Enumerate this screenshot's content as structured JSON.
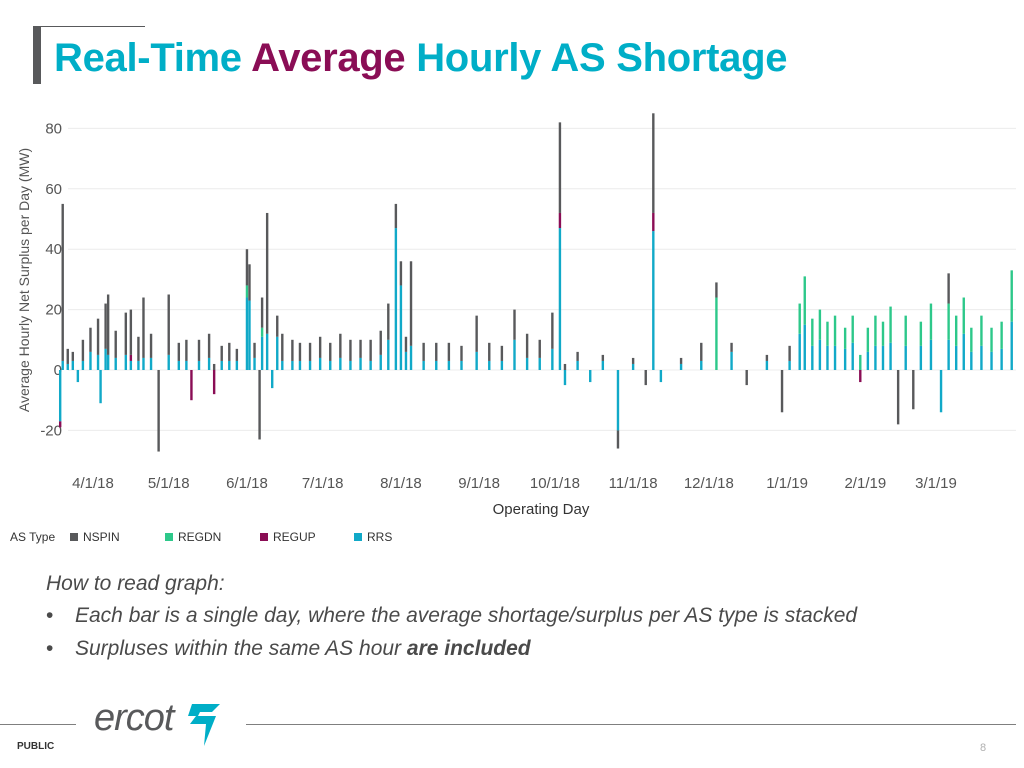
{
  "slide": {
    "title_part1": "Real-Time",
    "title_accent": "Average",
    "title_part2": "Hourly AS Shortage",
    "how_to_read": "How to read graph:",
    "bullet1": "Each bar is a single day, where the average shortage/surplus per AS type is stacked",
    "bullet2_text": "Surpluses within the same AS hour",
    "bullet2_bold": "are included",
    "bullet_char": "•",
    "logo_text": "ercot",
    "classification": "PUBLIC",
    "page_number": "8"
  },
  "colors": {
    "title": "#00aec7",
    "title_accent": "#8a0d55",
    "NSPIN": "#58595b",
    "REGDN": "#2dc88a",
    "REGUP": "#8a0d55",
    "RRS": "#11a9c8",
    "logo_mark": "#00aec7"
  },
  "chart_data": {
    "type": "bar",
    "stacked": true,
    "ylabel": "Average Hourly Net Surplus per Day (MW)",
    "xlabel": "Operating Day",
    "ylim": [
      -30,
      85
    ],
    "yticks": [
      -20,
      0,
      20,
      40,
      60,
      80
    ],
    "grid": "horizontal",
    "x_tick_labels": [
      "4/1/18",
      "5/1/18",
      "6/1/18",
      "7/1/18",
      "8/1/18",
      "9/1/18",
      "10/1/18",
      "11/1/18",
      "12/1/18",
      "1/1/19",
      "2/1/19",
      "3/1/19"
    ],
    "x_tick_dates": [
      "2018-04-01",
      "2018-05-01",
      "2018-06-01",
      "2018-07-01",
      "2018-08-01",
      "2018-09-01",
      "2018-10-01",
      "2018-11-01",
      "2018-12-01",
      "2019-01-01",
      "2019-02-01",
      "2019-03-01"
    ],
    "legend_title": "AS Type",
    "legend_position": "bottom-left",
    "series_names": [
      "NSPIN",
      "REGDN",
      "REGUP",
      "RRS"
    ],
    "points": [
      {
        "date": "2018-03-19",
        "RRS": -17,
        "REGUP": -2
      },
      {
        "date": "2018-03-20",
        "NSPIN": 52,
        "RRS": 3
      },
      {
        "date": "2018-03-22",
        "NSPIN": 5,
        "RRS": 2
      },
      {
        "date": "2018-03-24",
        "NSPIN": 3,
        "RRS": 3
      },
      {
        "date": "2018-03-26",
        "RRS": -4
      },
      {
        "date": "2018-03-28",
        "NSPIN": 7,
        "RRS": 3
      },
      {
        "date": "2018-03-31",
        "NSPIN": 8,
        "RRS": 6
      },
      {
        "date": "2018-04-03",
        "NSPIN": 12,
        "RRS": 5
      },
      {
        "date": "2018-04-04",
        "RRS": -11
      },
      {
        "date": "2018-04-06",
        "NSPIN": 15,
        "RRS": 7
      },
      {
        "date": "2018-04-07",
        "NSPIN": 20,
        "RRS": 5
      },
      {
        "date": "2018-04-10",
        "NSPIN": 9,
        "RRS": 4
      },
      {
        "date": "2018-04-14",
        "NSPIN": 14,
        "RRS": 5
      },
      {
        "date": "2018-04-16",
        "NSPIN": 15,
        "REGUP": 2,
        "RRS": 3
      },
      {
        "date": "2018-04-19",
        "NSPIN": 8,
        "RRS": 3
      },
      {
        "date": "2018-04-21",
        "NSPIN": 20,
        "RRS": 4
      },
      {
        "date": "2018-04-24",
        "NSPIN": 8,
        "RRS": 4
      },
      {
        "date": "2018-04-27",
        "NSPIN": -27
      },
      {
        "date": "2018-05-01",
        "NSPIN": 20,
        "RRS": 5
      },
      {
        "date": "2018-05-05",
        "NSPIN": 6,
        "RRS": 3
      },
      {
        "date": "2018-05-08",
        "NSPIN": 7,
        "RRS": 3
      },
      {
        "date": "2018-05-10",
        "REGUP": -10
      },
      {
        "date": "2018-05-13",
        "NSPIN": 7,
        "RRS": 3
      },
      {
        "date": "2018-05-17",
        "NSPIN": 8,
        "RRS": 4
      },
      {
        "date": "2018-05-19",
        "NSPIN": 2,
        "REGUP": -8
      },
      {
        "date": "2018-05-22",
        "NSPIN": 5,
        "RRS": 3
      },
      {
        "date": "2018-05-25",
        "NSPIN": 6,
        "RRS": 3
      },
      {
        "date": "2018-05-28",
        "NSPIN": 4,
        "RRS": 3
      },
      {
        "date": "2018-06-01",
        "NSPIN": 12,
        "REGDN": 4,
        "RRS": 24
      },
      {
        "date": "2018-06-02",
        "NSPIN": 12,
        "RRS": 23
      },
      {
        "date": "2018-06-04",
        "NSPIN": 5,
        "RRS": 4
      },
      {
        "date": "2018-06-06",
        "NSPIN": -23
      },
      {
        "date": "2018-06-07",
        "NSPIN": 10,
        "REGDN": 3,
        "RRS": 11
      },
      {
        "date": "2018-06-09",
        "NSPIN": 40,
        "RRS": 12
      },
      {
        "date": "2018-06-11",
        "RRS": -6
      },
      {
        "date": "2018-06-13",
        "NSPIN": 7,
        "RRS": 11
      },
      {
        "date": "2018-06-15",
        "NSPIN": 9,
        "RRS": 3
      },
      {
        "date": "2018-06-19",
        "NSPIN": 7,
        "RRS": 3
      },
      {
        "date": "2018-06-22",
        "NSPIN": 6,
        "RRS": 3
      },
      {
        "date": "2018-06-26",
        "NSPIN": 6,
        "RRS": 3
      },
      {
        "date": "2018-06-30",
        "NSPIN": 7,
        "RRS": 4
      },
      {
        "date": "2018-07-04",
        "NSPIN": 6,
        "RRS": 3
      },
      {
        "date": "2018-07-08",
        "NSPIN": 8,
        "RRS": 4
      },
      {
        "date": "2018-07-12",
        "NSPIN": 7,
        "RRS": 3
      },
      {
        "date": "2018-07-16",
        "NSPIN": 6,
        "RRS": 4
      },
      {
        "date": "2018-07-20",
        "NSPIN": 7,
        "RRS": 3
      },
      {
        "date": "2018-07-24",
        "NSPIN": 8,
        "RRS": 5
      },
      {
        "date": "2018-07-27",
        "NSPIN": 12,
        "RRS": 10
      },
      {
        "date": "2018-07-30",
        "NSPIN": 8,
        "RRS": 47
      },
      {
        "date": "2018-08-01",
        "NSPIN": 8,
        "RRS": 28
      },
      {
        "date": "2018-08-03",
        "NSPIN": 5,
        "RRS": 6
      },
      {
        "date": "2018-08-05",
        "NSPIN": 28,
        "RRS": 8
      },
      {
        "date": "2018-08-10",
        "NSPIN": 6,
        "RRS": 3
      },
      {
        "date": "2018-08-15",
        "NSPIN": 6,
        "RRS": 3
      },
      {
        "date": "2018-08-20",
        "NSPIN": 6,
        "RRS": 3
      },
      {
        "date": "2018-08-25",
        "NSPIN": 5,
        "RRS": 3
      },
      {
        "date": "2018-08-31",
        "NSPIN": 12,
        "RRS": 6
      },
      {
        "date": "2018-09-05",
        "NSPIN": 6,
        "RRS": 3
      },
      {
        "date": "2018-09-10",
        "NSPIN": 5,
        "RRS": 3
      },
      {
        "date": "2018-09-15",
        "NSPIN": 10,
        "RRS": 10
      },
      {
        "date": "2018-09-20",
        "NSPIN": 8,
        "RRS": 4
      },
      {
        "date": "2018-09-25",
        "NSPIN": 6,
        "RRS": 4
      },
      {
        "date": "2018-09-30",
        "NSPIN": 12,
        "RRS": 7
      },
      {
        "date": "2018-10-03",
        "NSPIN": 30,
        "REGUP": 5,
        "RRS": 47
      },
      {
        "date": "2018-10-05",
        "NSPIN": 2,
        "RRS": -5
      },
      {
        "date": "2018-10-10",
        "NSPIN": 3,
        "RRS": 3
      },
      {
        "date": "2018-10-15",
        "RRS": -4
      },
      {
        "date": "2018-10-20",
        "NSPIN": 2,
        "RRS": 3
      },
      {
        "date": "2018-10-26",
        "RRS": -20,
        "NSPIN": -6
      },
      {
        "date": "2018-11-01",
        "NSPIN": 2,
        "RRS": 2
      },
      {
        "date": "2018-11-06",
        "NSPIN": -5
      },
      {
        "date": "2018-11-09",
        "NSPIN": 33,
        "REGUP": 6,
        "RRS": 46
      },
      {
        "date": "2018-11-12",
        "RRS": -4
      },
      {
        "date": "2018-11-20",
        "NSPIN": 2,
        "RRS": 2
      },
      {
        "date": "2018-11-28",
        "NSPIN": 6,
        "RRS": 3
      },
      {
        "date": "2018-12-04",
        "NSPIN": 5,
        "REGDN": 24
      },
      {
        "date": "2018-12-10",
        "NSPIN": 3,
        "RRS": 6
      },
      {
        "date": "2018-12-16",
        "NSPIN": -5
      },
      {
        "date": "2018-12-24",
        "NSPIN": 2,
        "RRS": 3
      },
      {
        "date": "2018-12-30",
        "NSPIN": -14
      },
      {
        "date": "2019-01-02",
        "NSPIN": 5,
        "RRS": 3
      },
      {
        "date": "2019-01-06",
        "REGDN": 10,
        "RRS": 12
      },
      {
        "date": "2019-01-08",
        "REGDN": 16,
        "RRS": 15
      },
      {
        "date": "2019-01-11",
        "REGDN": 9,
        "RRS": 8
      },
      {
        "date": "2019-01-14",
        "REGDN": 10,
        "RRS": 10
      },
      {
        "date": "2019-01-17",
        "REGDN": 8,
        "RRS": 8
      },
      {
        "date": "2019-01-20",
        "REGDN": 10,
        "RRS": 8
      },
      {
        "date": "2019-01-24",
        "REGDN": 7,
        "RRS": 7
      },
      {
        "date": "2019-01-27",
        "REGDN": 9,
        "RRS": 9
      },
      {
        "date": "2019-01-30",
        "REGDN": 5,
        "REGUP": -4
      },
      {
        "date": "2019-02-02",
        "REGDN": 8,
        "RRS": 6
      },
      {
        "date": "2019-02-05",
        "REGDN": 10,
        "RRS": 8
      },
      {
        "date": "2019-02-08",
        "REGDN": 8,
        "RRS": 8
      },
      {
        "date": "2019-02-11",
        "REGDN": 12,
        "RRS": 9
      },
      {
        "date": "2019-02-14",
        "NSPIN": -18
      },
      {
        "date": "2019-02-17",
        "REGDN": 10,
        "RRS": 8
      },
      {
        "date": "2019-02-20",
        "NSPIN": -13
      },
      {
        "date": "2019-02-23",
        "REGDN": 8,
        "RRS": 8
      },
      {
        "date": "2019-02-27",
        "REGDN": 12,
        "RRS": 10
      },
      {
        "date": "2019-03-03",
        "RRS": -14
      },
      {
        "date": "2019-03-06",
        "NSPIN": 10,
        "REGDN": 12,
        "RRS": 10
      },
      {
        "date": "2019-03-09",
        "REGDN": 10,
        "RRS": 8
      },
      {
        "date": "2019-03-12",
        "REGDN": 12,
        "RRS": 12
      },
      {
        "date": "2019-03-15",
        "REGDN": 8,
        "RRS": 6
      },
      {
        "date": "2019-03-19",
        "REGDN": 10,
        "RRS": 8
      },
      {
        "date": "2019-03-23",
        "REGDN": 8,
        "RRS": 6
      },
      {
        "date": "2019-03-27",
        "REGDN": 9,
        "RRS": 7
      },
      {
        "date": "2019-03-31",
        "REGDN": 17,
        "RRS": 16
      }
    ]
  }
}
